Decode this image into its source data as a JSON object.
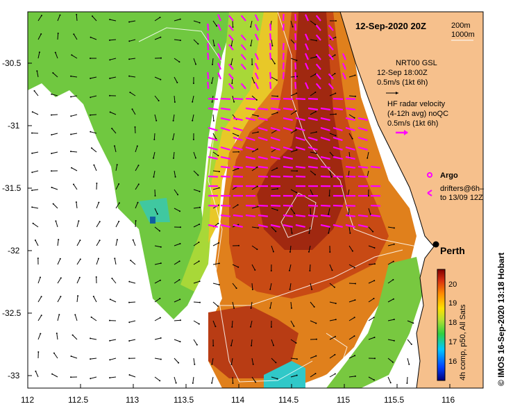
{
  "title": "12-Sep-2020 20Z",
  "scale_labels": [
    "200m",
    "1000m"
  ],
  "legend": {
    "model": {
      "name": "NRT00 GSL",
      "time": "12-Sep 18:00Z",
      "scale": "0.5m/s (1kt 6h)"
    },
    "radar": {
      "line1": "HF radar velocity",
      "line2": "(4-12h avg) noQC",
      "scale": "0.5m/s (1kt 6h)"
    },
    "argo": "Argo",
    "drifters_line1": "drifters@6h–",
    "drifters_line2": "to 13/09 12Z"
  },
  "place": {
    "name": "Perth"
  },
  "y_ticks": [
    "-30.5",
    "-31",
    "-31.5",
    "-32",
    "-32.5",
    "-33"
  ],
  "x_ticks": [
    "112",
    "112.5",
    "113",
    "113.5",
    "114",
    "114.5",
    "115",
    "115.5",
    "116"
  ],
  "colorbar": {
    "ticks": [
      "20",
      "19",
      "18",
      "17",
      "16"
    ],
    "label": "4h comp, p50, All Sats"
  },
  "credit": "© IMOS 16-Sep-2020 13:18 Hobart",
  "colors": {
    "land": "#f6c08c",
    "magenta": "#ff00ff",
    "warm_core": "#a02810",
    "sst_orange": "#e0801c"
  }
}
